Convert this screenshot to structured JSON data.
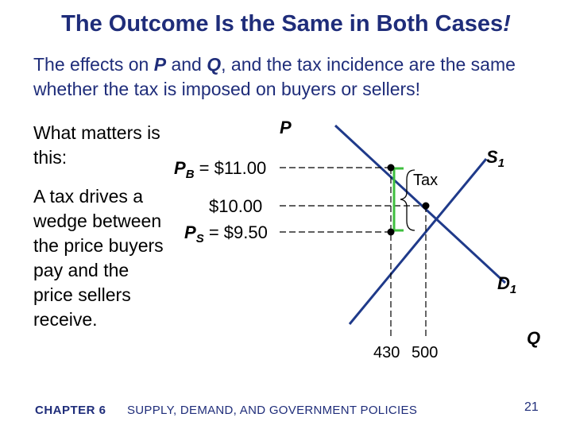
{
  "title": {
    "text": "The Outcome Is the Same in Both Cases",
    "excl": "!"
  },
  "subtitle": {
    "t1": "The effects on ",
    "p": "P",
    "t2": " and ",
    "q": "Q",
    "t3": ", and the tax incidence are the same whether the tax is imposed on buyers or sellers!"
  },
  "side": {
    "line1": "What matters is this:",
    "line2": "A tax drives a wedge between the price buyers pay and the price sellers receive."
  },
  "diagram": {
    "p_axis_label": "P",
    "q_axis_label": "Q",
    "pb_label_p": "P",
    "pb_label_sub": "B",
    "pb_value": " = $11.00",
    "eq_price": "$10.00",
    "ps_label_p": "P",
    "ps_label_sub": "S",
    "ps_value": " = $9.50",
    "tax_label": "Tax",
    "supply_label": "S",
    "supply_sub": "1",
    "demand_label": "D",
    "demand_sub": "1",
    "q_tax": "430",
    "q_eq": "500",
    "colors": {
      "curves": "#1f3a8a",
      "wedge": "#3fbf3f",
      "text_blue": "#1f2d7a"
    }
  },
  "footer": {
    "chapter": "CHAPTER 6",
    "text": "SUPPLY, DEMAND, AND GOVERNMENT POLICIES",
    "page": "21"
  }
}
